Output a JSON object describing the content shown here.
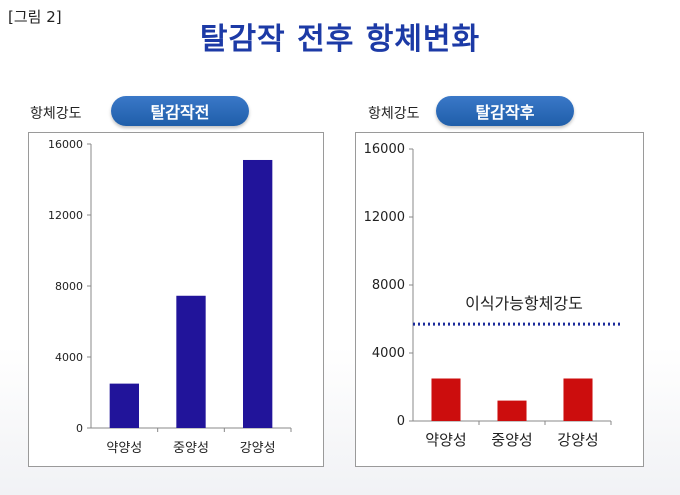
{
  "figure_label": "[그림 2]",
  "title": "탈감작 전후 항체변화",
  "chart_data": [
    {
      "type": "bar",
      "title": "탈감작전",
      "ylabel": "항체강도",
      "categories": [
        "약양성",
        "중양성",
        "강양성"
      ],
      "values": [
        2500,
        7450,
        15100
      ],
      "ylim": [
        0,
        16000
      ],
      "yticks": [
        "0",
        "4000",
        "8000",
        "12000",
        "16000"
      ],
      "color": "#21149a"
    },
    {
      "type": "bar",
      "title": "탈감작후",
      "ylabel": "항체강도",
      "categories": [
        "약양성",
        "중양성",
        "강양성"
      ],
      "values": [
        2500,
        1200,
        2500
      ],
      "ylim": [
        0,
        16000
      ],
      "yticks": [
        "0",
        "4000",
        "8000",
        "12000",
        "16000"
      ],
      "color": "#cc0d0d",
      "threshold": {
        "value": 5700,
        "label": "이식가능항체강도",
        "color": "#1a2a9a"
      }
    }
  ]
}
